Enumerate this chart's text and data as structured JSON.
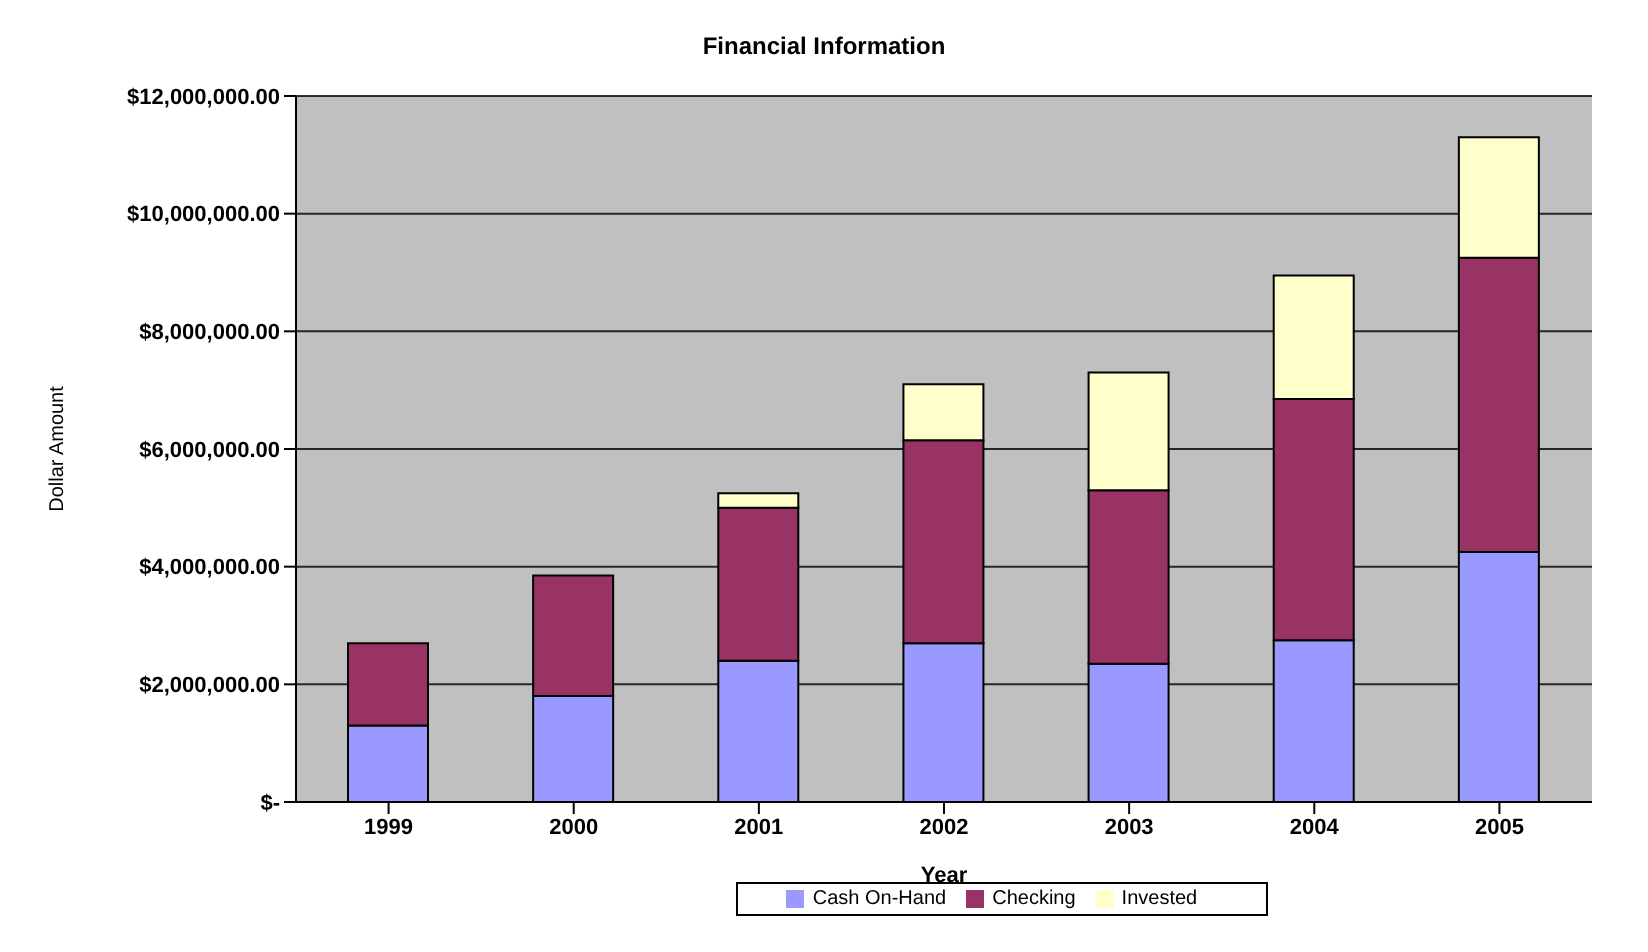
{
  "chart_data": {
    "type": "bar",
    "title": "Financial Information",
    "xlabel": "Year",
    "ylabel": "Dollar Amount",
    "categories": [
      "1999",
      "2000",
      "2001",
      "2002",
      "2003",
      "2004",
      "2005"
    ],
    "stacked": true,
    "series": [
      {
        "name": "Cash On-Hand",
        "color": "#9999ff",
        "values": [
          1300000,
          1800000,
          2400000,
          2700000,
          2350000,
          2750000,
          4250000
        ]
      },
      {
        "name": "Checking",
        "color": "#993366",
        "values": [
          1400000,
          2050000,
          2600000,
          3450000,
          2950000,
          4100000,
          5000000
        ]
      },
      {
        "name": "Invested",
        "color": "#ffffcc",
        "values": [
          0,
          0,
          250000,
          950000,
          2000000,
          2100000,
          2050000
        ]
      }
    ],
    "ylim": [
      0,
      12000000
    ],
    "yticks": [
      {
        "value": 0,
        "label": "$-"
      },
      {
        "value": 2000000,
        "label": "$2,000,000.00"
      },
      {
        "value": 4000000,
        "label": "$4,000,000.00"
      },
      {
        "value": 6000000,
        "label": "$6,000,000.00"
      },
      {
        "value": 8000000,
        "label": "$8,000,000.00"
      },
      {
        "value": 10000000,
        "label": "$10,000,000.00"
      },
      {
        "value": 12000000,
        "label": "$12,000,000.00"
      }
    ],
    "grid": "y",
    "legend": "bottom"
  }
}
